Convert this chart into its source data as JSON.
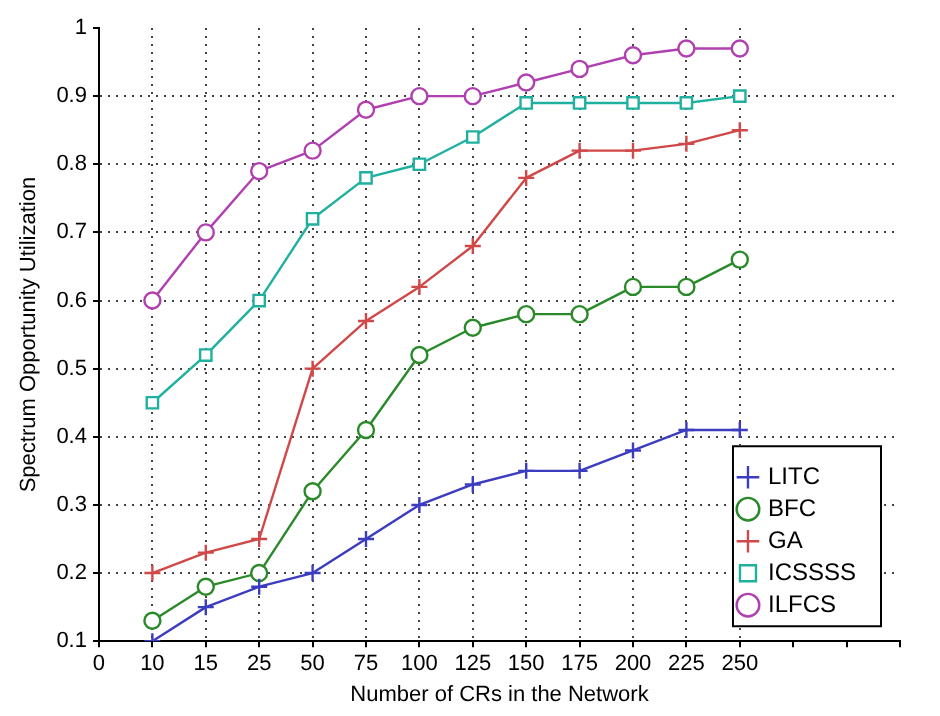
{
  "chart_data": {
    "type": "line",
    "xlabel": "Number of CRs in the Network",
    "ylabel": "Spectrum Opportunity Utilization",
    "categories": [
      "0",
      "10",
      "15",
      "25",
      "50",
      "75",
      "100",
      "125",
      "150",
      "175",
      "200",
      "225",
      "250",
      null,
      null,
      null
    ],
    "ylim": [
      0.1,
      1
    ],
    "yticks": [
      0.1,
      0.2,
      0.3,
      0.4,
      0.5,
      0.6,
      0.7,
      0.8,
      0.9,
      1
    ],
    "grid": true,
    "legend": "bottom right",
    "series": [
      {
        "name": "LITC",
        "color": "#3c3cc0",
        "marker": "cross",
        "values": [
          null,
          0.1,
          0.15,
          0.18,
          0.2,
          0.25,
          0.3,
          0.33,
          0.35,
          0.35,
          0.38,
          0.41,
          0.41,
          null,
          null,
          null
        ]
      },
      {
        "name": "BFC",
        "color": "#2a8a2a",
        "marker": "circle",
        "values": [
          null,
          0.13,
          0.18,
          0.2,
          0.32,
          0.41,
          0.52,
          0.56,
          0.58,
          0.58,
          0.62,
          0.62,
          0.66,
          null,
          null,
          null
        ]
      },
      {
        "name": "GA",
        "color": "#d04848",
        "marker": "cross",
        "values": [
          null,
          0.2,
          0.23,
          0.25,
          0.5,
          0.57,
          0.62,
          0.68,
          0.78,
          0.82,
          0.82,
          0.83,
          0.85,
          null,
          null,
          null
        ]
      },
      {
        "name": "ICSSSS",
        "color": "#20b0a0",
        "marker": "square",
        "values": [
          null,
          0.45,
          0.52,
          0.6,
          0.72,
          0.78,
          0.8,
          0.84,
          0.89,
          0.89,
          0.89,
          0.89,
          0.9,
          null,
          null,
          null
        ]
      },
      {
        "name": "ILFCS",
        "color": "#b040b0",
        "marker": "circle",
        "values": [
          null,
          0.6,
          0.7,
          0.79,
          0.82,
          0.88,
          0.9,
          0.9,
          0.92,
          0.94,
          0.96,
          0.97,
          0.97,
          null,
          null,
          null
        ]
      }
    ]
  }
}
